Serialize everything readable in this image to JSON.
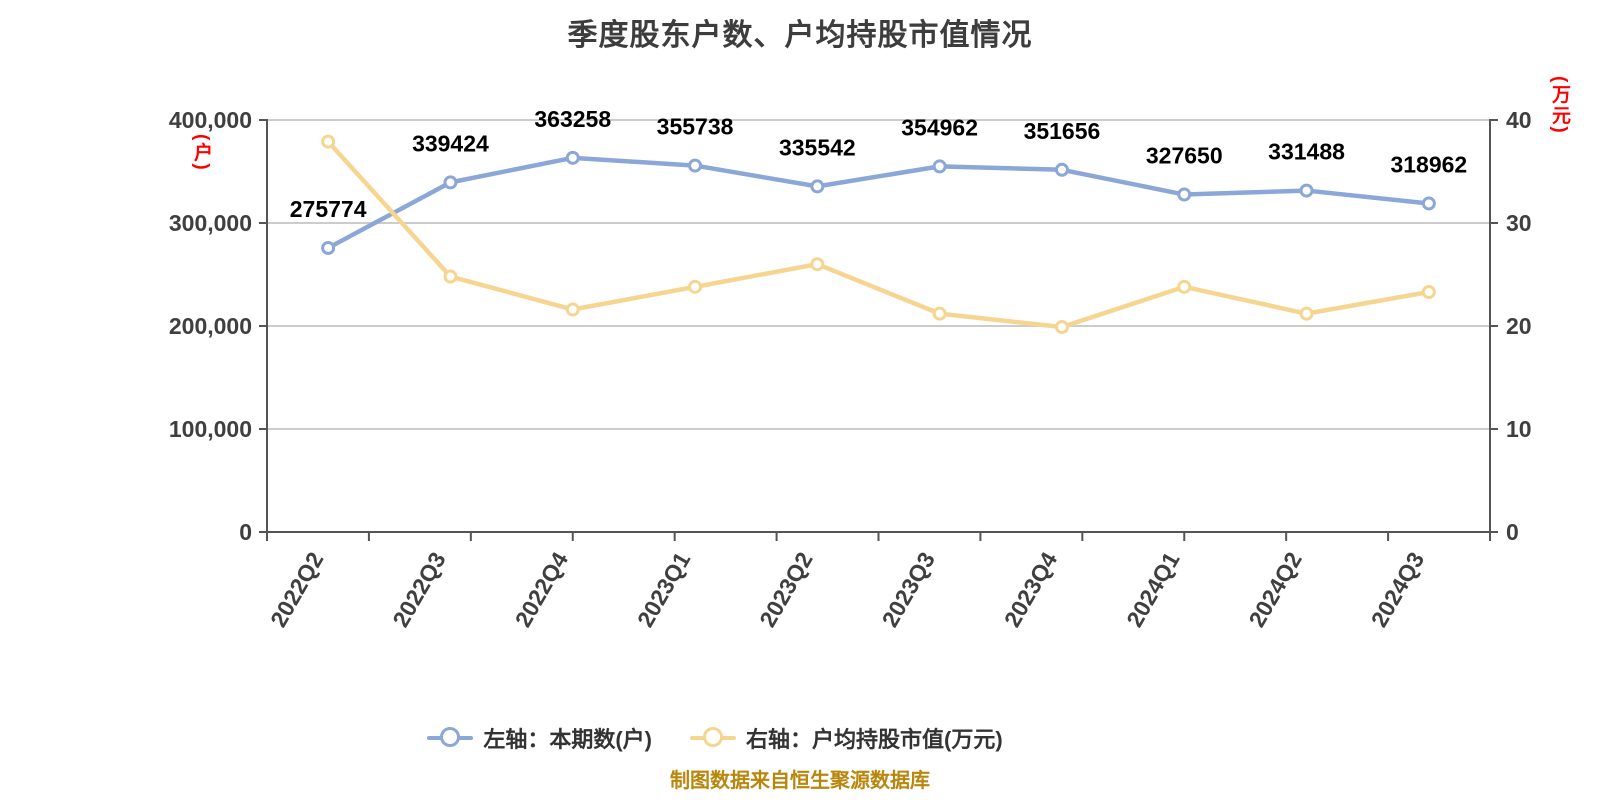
{
  "title": "季度股东户数、户均持股市值情况",
  "source_note": "制图数据来自恒生聚源数据库",
  "colors": {
    "shareholder_line": "#8ba7d8",
    "marketvalue_line": "#f6d591",
    "marker_fill": "#ffffff",
    "grid_line": "#cccccc",
    "axis_line": "#555555",
    "axis_text": "#3f3f3f",
    "value_label": "#000000",
    "unit_label": "#ff0000",
    "source_text": "#b8860b",
    "legend_text": "#333333"
  },
  "left_axis": {
    "unit": "(户)",
    "tick_labels": [
      "0",
      "100,000",
      "200,000",
      "300,000",
      "400,000"
    ],
    "tick_values": [
      0,
      100000,
      200000,
      300000,
      400000
    ]
  },
  "right_axis": {
    "unit": "(万元)",
    "tick_labels": [
      "0",
      "10",
      "20",
      "30",
      "40"
    ],
    "tick_values": [
      0,
      10,
      20,
      30,
      40
    ]
  },
  "legend": [
    {
      "id": "shareholders",
      "label": "左轴：本期数(户)",
      "color_key": "shareholder_line"
    },
    {
      "id": "marketvalue",
      "label": "右轴：户均持股市值(万元)",
      "color_key": "marketvalue_line"
    }
  ],
  "chart_data": {
    "type": "line",
    "title": "季度股东户数、户均持股市值情况",
    "categories": [
      "2022Q2",
      "2022Q3",
      "2022Q4",
      "2023Q1",
      "2023Q2",
      "2023Q3",
      "2023Q4",
      "2024Q1",
      "2024Q2",
      "2024Q3"
    ],
    "series": [
      {
        "name": "左轴：本期数(户)",
        "axis": "left",
        "color_key": "shareholder_line",
        "values": [
          275774,
          339424,
          363258,
          355738,
          335542,
          354962,
          351656,
          327650,
          331488,
          318962
        ],
        "value_labels": [
          "275774",
          "339424",
          "363258",
          "355738",
          "335542",
          "354962",
          "351656",
          "327650",
          "331488",
          "318962"
        ],
        "show_labels": true
      },
      {
        "name": "右轴：户均持股市值(万元)",
        "axis": "right",
        "color_key": "marketvalue_line",
        "values": [
          37.9,
          24.8,
          21.6,
          23.8,
          26.0,
          21.2,
          19.9,
          23.8,
          21.2,
          23.3
        ],
        "show_labels": false
      }
    ],
    "left_ylim": [
      0,
      400000
    ],
    "right_ylim": [
      0,
      40
    ],
    "grid": true,
    "legend_position": "bottom"
  }
}
